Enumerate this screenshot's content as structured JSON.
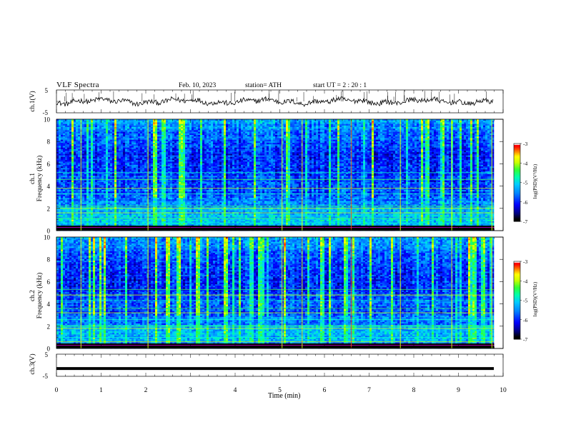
{
  "header": {
    "title": "VLF  Spectra",
    "date": "Feb. 10, 2023",
    "station": "station= ATH",
    "start_ut": "start  UT  =    2  : 20 : 1"
  },
  "labels": {
    "ch1_ylabel": "ch.1(V)",
    "ch2_ylabel": "ch.2",
    "ch3_ylabel": "ch.3(V)",
    "freq_label": "Frequency (kHz)",
    "colorbar_label": "log(PSD)(V²/Hz)",
    "xlabel": "Time (min)"
  },
  "colors": {
    "colormap": [
      "#000000",
      "#00007f",
      "#0000ff",
      "#00aaff",
      "#00ffcc",
      "#33ff33",
      "#ccff00",
      "#ffff00",
      "#ff7f00",
      "#ff0000",
      "#ffffff"
    ]
  },
  "chart_data": [
    {
      "type": "line",
      "name": "ch.1",
      "ylabel": "ch.1(V)",
      "ylim": [
        -5,
        5
      ],
      "y_ticks": [
        "5",
        "-5"
      ],
      "xlim": [
        0,
        10
      ],
      "baseline": 0,
      "signal": "noisy waveform around 0 V with sparse spikes"
    },
    {
      "type": "heatmap",
      "name": "ch.1",
      "ylabel": "ch.1 Frequency (kHz)",
      "ylim": [
        0,
        10
      ],
      "y_ticks": [
        "0",
        "2",
        "4",
        "6",
        "8",
        "10"
      ],
      "xlim": [
        0,
        9.8
      ],
      "colorbar": {
        "ticks": [
          "-3",
          "-4",
          "-5",
          "-6",
          "-7"
        ],
        "range": [
          -7,
          -3
        ],
        "label": "log(PSD)(V²/Hz)"
      },
      "lines_khz": [
        2.0,
        2.2,
        3.3,
        3.8,
        4.6,
        5.2,
        1.6,
        1.1,
        0.7
      ]
    },
    {
      "type": "heatmap",
      "name": "ch.2",
      "ylabel": "ch.2 Frequency (kHz)",
      "ylim": [
        0,
        10
      ],
      "y_ticks": [
        "0",
        "2",
        "4",
        "6",
        "8",
        "10"
      ],
      "xlim": [
        0,
        9.8
      ],
      "colorbar": {
        "ticks": [
          "-3",
          "-4",
          "-5",
          "-6",
          "-7"
        ],
        "range": [
          -7,
          -3
        ],
        "label": "log(PSD)(V²/Hz)"
      },
      "lines_khz": [
        1.8,
        2.0,
        2.6,
        3.2,
        3.6,
        4.3,
        4.8,
        5.3,
        1.0,
        0.6
      ]
    },
    {
      "type": "line",
      "name": "ch.3",
      "ylabel": "ch.3(V)",
      "ylim": [
        -5,
        5
      ],
      "y_ticks": [
        "5",
        "-5"
      ],
      "xlim": [
        0,
        10
      ],
      "baseline": -1.5,
      "signal": "flat thick line near -1.5 V"
    }
  ],
  "x_axis": {
    "ticks": [
      "0",
      "1",
      "2",
      "3",
      "4",
      "5",
      "6",
      "7",
      "8",
      "9",
      "10"
    ],
    "xlim": [
      0,
      10
    ],
    "label": "Time (min)"
  }
}
